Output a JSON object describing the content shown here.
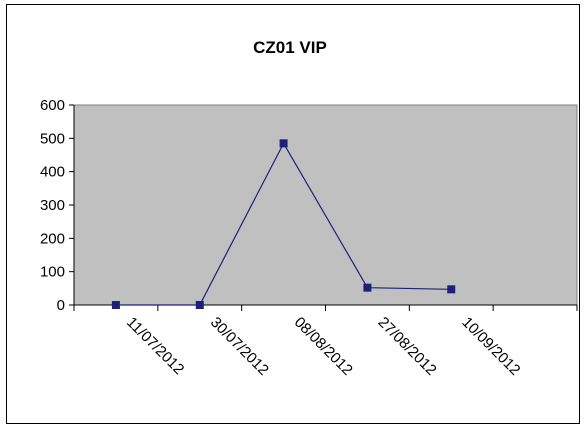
{
  "chart_data": {
    "type": "line",
    "title": "CZ01 VIP",
    "categories": [
      "11/07/2012",
      "30/07/2012",
      "08/08/2012",
      "27/08/2012",
      "10/09/2012"
    ],
    "series": [
      {
        "values": [
          0,
          0,
          485,
          52,
          47
        ],
        "color": "#1f1f7a"
      }
    ],
    "ylim": [
      0,
      600
    ],
    "yticks": [
      0,
      100,
      200,
      300,
      400,
      500,
      600
    ],
    "xlabel": "",
    "ylabel": "",
    "plot_background": "#c0c0c0",
    "grid": false,
    "legend": "none"
  }
}
